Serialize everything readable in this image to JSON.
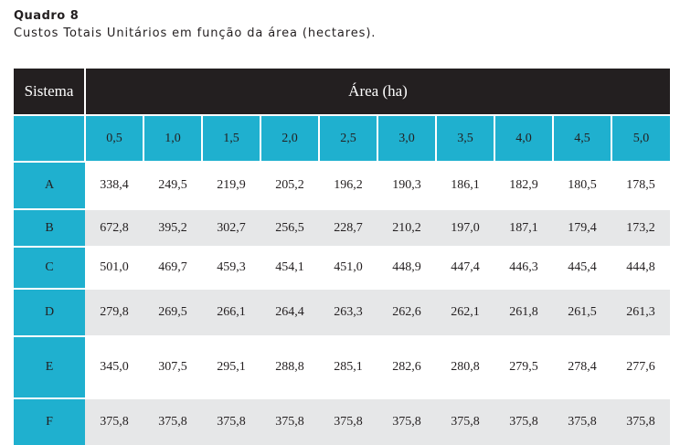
{
  "caption": {
    "label": "Quadro 8",
    "title": "Custos Totais Unitários em função da área (hectares)."
  },
  "table": {
    "row_header": "Sistema",
    "column_group_header": "Área (ha)",
    "columns": [
      "0,5",
      "1,0",
      "1,5",
      "2,0",
      "2,5",
      "3,0",
      "3,5",
      "4,0",
      "4,5",
      "5,0"
    ],
    "rows": [
      {
        "label": "A",
        "values": [
          "338,4",
          "249,5",
          "219,9",
          "205,2",
          "196,2",
          "190,3",
          "186,1",
          "182,9",
          "180,5",
          "178,5"
        ]
      },
      {
        "label": "B",
        "values": [
          "672,8",
          "395,2",
          "302,7",
          "256,5",
          "228,7",
          "210,2",
          "197,0",
          "187,1",
          "179,4",
          "173,2"
        ]
      },
      {
        "label": "C",
        "values": [
          "501,0",
          "469,7",
          "459,3",
          "454,1",
          "451,0",
          "448,9",
          "447,4",
          "446,3",
          "445,4",
          "444,8"
        ]
      },
      {
        "label": "D",
        "values": [
          "279,8",
          "269,5",
          "266,1",
          "264,4",
          "263,3",
          "262,6",
          "262,1",
          "261,8",
          "261,5",
          "261,3"
        ]
      },
      {
        "label": "E",
        "values": [
          "345,0",
          "307,5",
          "295,1",
          "288,8",
          "285,1",
          "282,6",
          "280,8",
          "279,5",
          "278,4",
          "277,6"
        ]
      },
      {
        "label": "F",
        "values": [
          "375,8",
          "375,8",
          "375,8",
          "375,8",
          "375,8",
          "375,8",
          "375,8",
          "375,8",
          "375,8",
          "375,8"
        ]
      }
    ]
  },
  "colors": {
    "header_dark": "#231f20",
    "accent_cyan": "#1fb0cf",
    "row_stripe": "#e6e7e8"
  }
}
